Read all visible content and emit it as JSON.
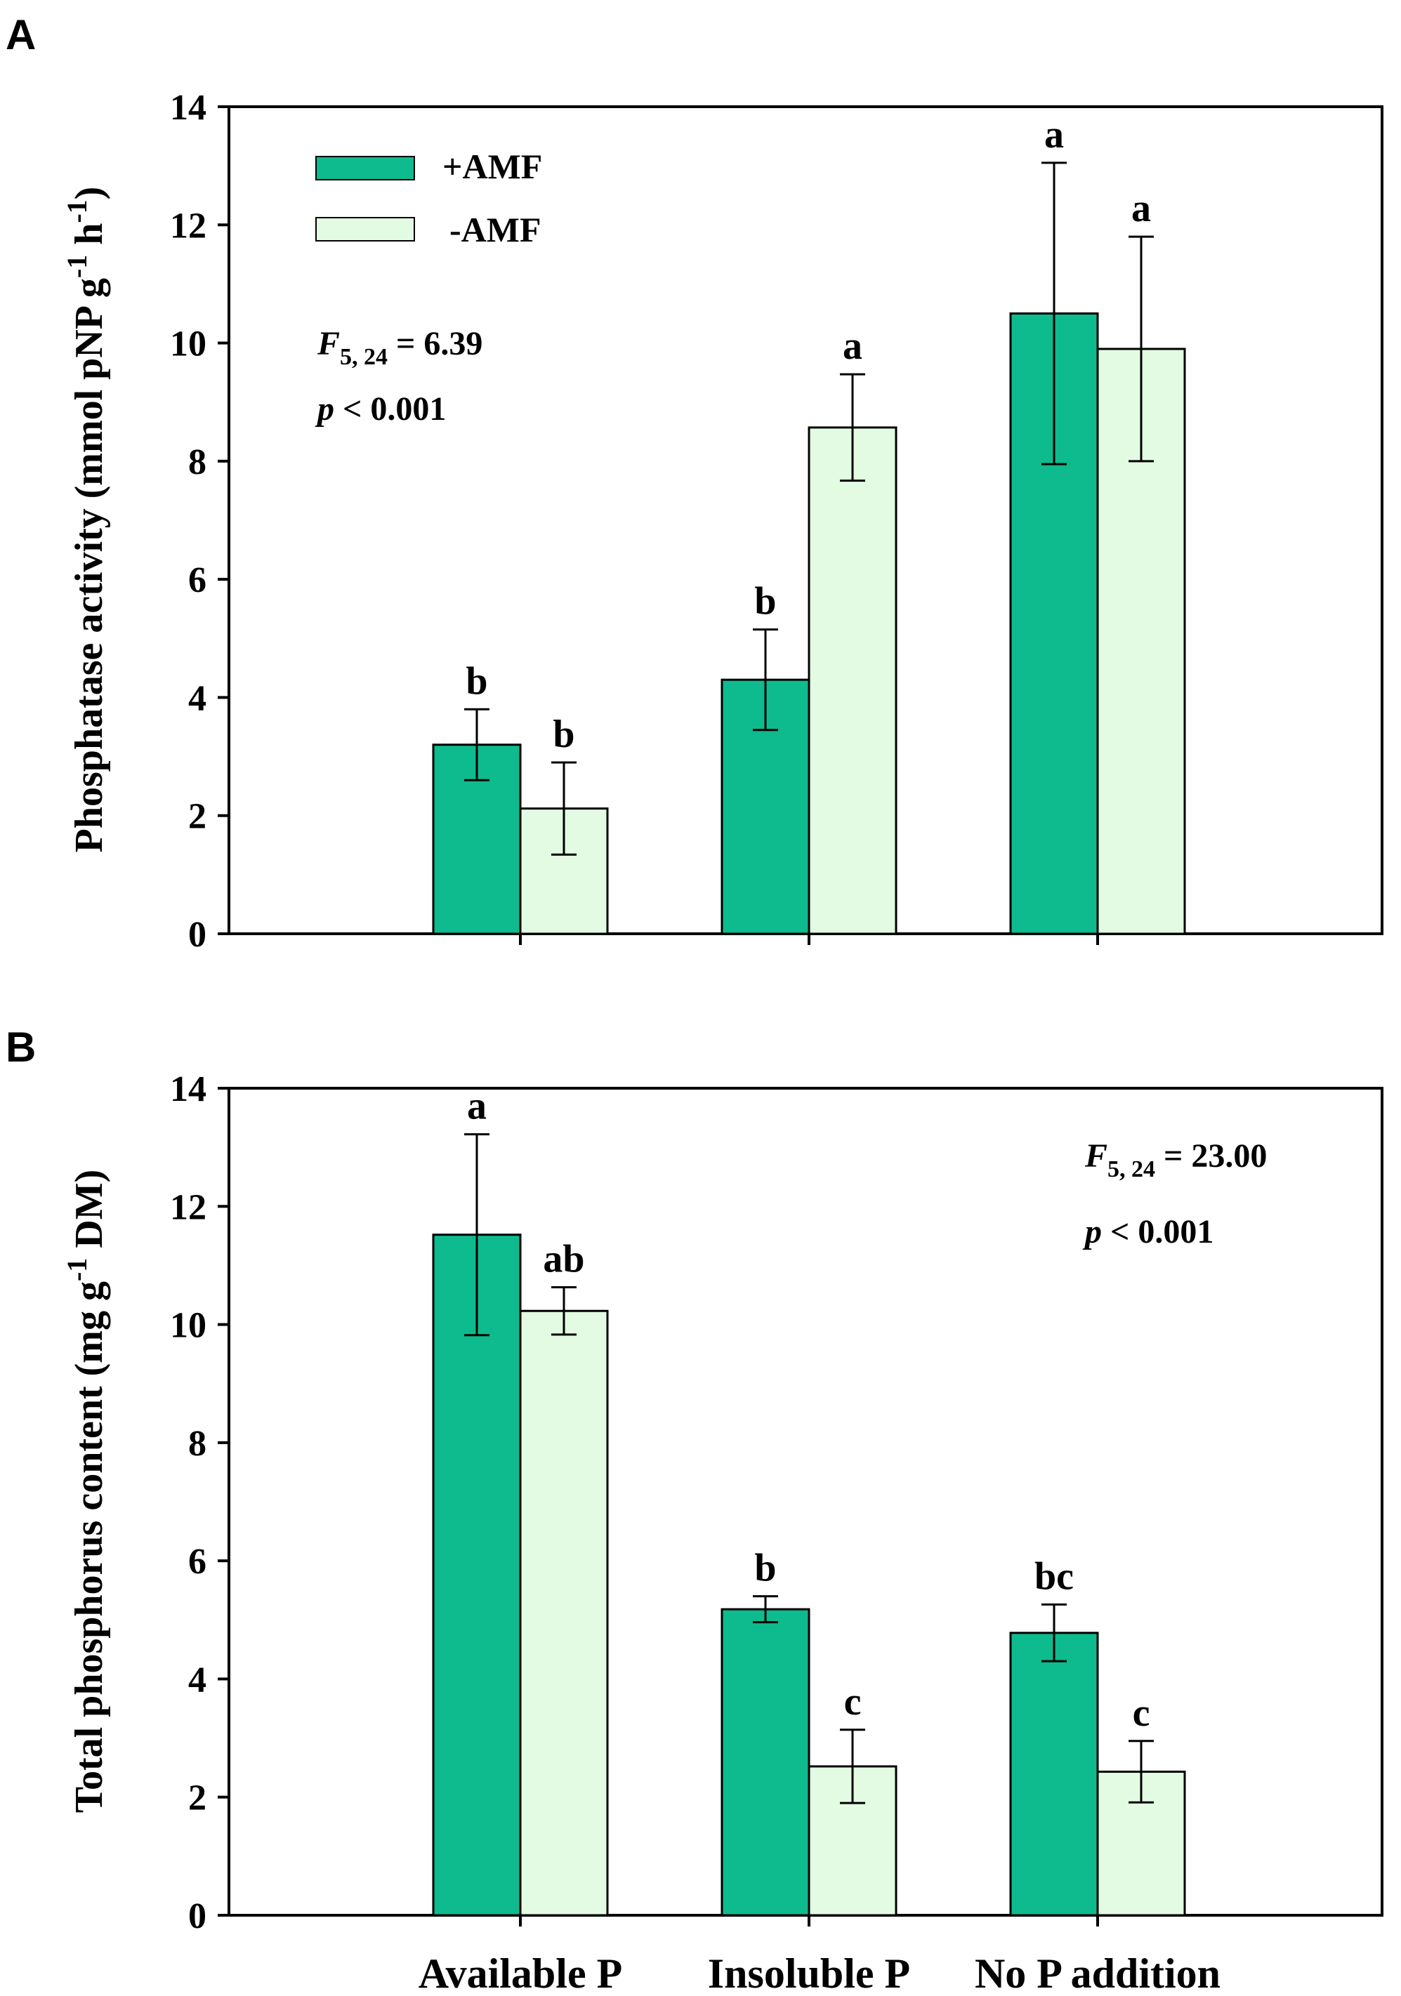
{
  "colors": {
    "amf_plus": "#0dbb8e",
    "amf_minus": "#e3fbe2",
    "axis": "#000000"
  },
  "chart_data": [
    {
      "type": "bar",
      "panel_label": "A",
      "ylabel": {
        "main": "Phosphatase activity (mmol pNP g",
        "sup1": "-1",
        "mid": " h",
        "sup2": "-1",
        "end": ")"
      },
      "xlabel": "",
      "ylim": [
        0,
        14
      ],
      "yticks": [
        0,
        2,
        4,
        6,
        8,
        10,
        12,
        14
      ],
      "categories": [
        "Available P",
        "Insoluble P",
        "No P addition"
      ],
      "series": [
        {
          "name": "+AMF",
          "values": [
            3.2,
            4.3,
            10.5
          ],
          "errors": [
            0.6,
            0.85,
            2.55
          ],
          "letters": [
            "b",
            "b",
            "a"
          ]
        },
        {
          "name": "-AMF",
          "values": [
            2.12,
            8.57,
            9.9
          ],
          "errors": [
            0.78,
            0.9,
            1.9
          ],
          "letters": [
            "b",
            "a",
            "a"
          ]
        }
      ],
      "legend": {
        "placement": "top-left",
        "entries": [
          "+AMF",
          "-AMF"
        ]
      },
      "stat": {
        "f_label": "F",
        "f_subscript": "5, 24",
        "f_value": " = 6.39",
        "p_label": "p",
        "p_text": " < 0.001",
        "placement": "left"
      }
    },
    {
      "type": "bar",
      "panel_label": "B",
      "ylabel": {
        "main": "Total phosphorus content (mg g",
        "sup1": "-1",
        "end": " DM)"
      },
      "xlabel": "",
      "ylim": [
        0,
        14
      ],
      "yticks": [
        0,
        2,
        4,
        6,
        8,
        10,
        12,
        14
      ],
      "categories": [
        "Available P",
        "Insoluble P",
        "No P addition"
      ],
      "series": [
        {
          "name": "+AMF",
          "values": [
            11.52,
            5.18,
            4.78
          ],
          "errors": [
            1.7,
            0.22,
            0.48
          ],
          "letters": [
            "a",
            "b",
            "bc"
          ]
        },
        {
          "name": "-AMF",
          "values": [
            10.23,
            2.52,
            2.43
          ],
          "errors": [
            0.4,
            0.62,
            0.52
          ],
          "letters": [
            "ab",
            "c",
            "c"
          ]
        }
      ],
      "stat": {
        "f_label": "F",
        "f_subscript": "5, 24",
        "f_value": " = 23.00",
        "p_label": "p",
        "p_text": " < 0.001",
        "placement": "right"
      }
    }
  ]
}
